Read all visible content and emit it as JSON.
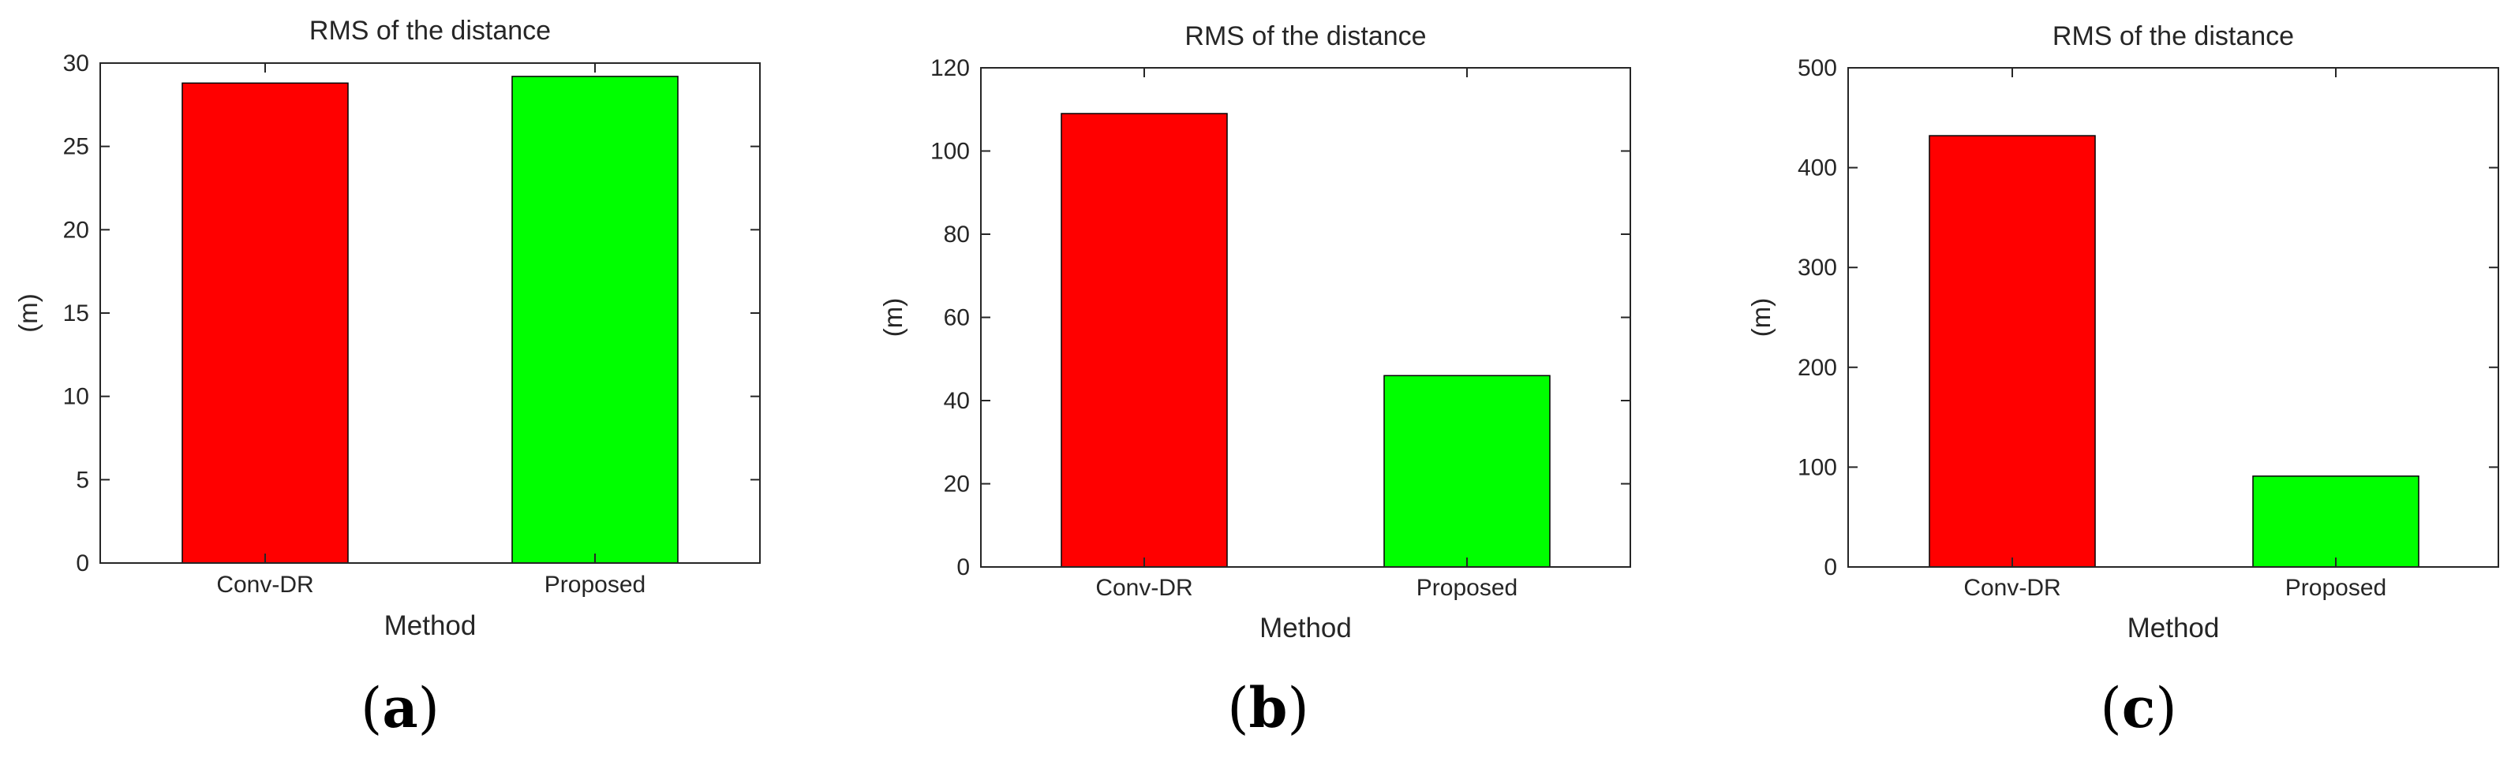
{
  "figure": {
    "panel_labels": [
      "a",
      "b",
      "c"
    ]
  },
  "colors": {
    "conv_dr": "#ff0000",
    "proposed": "#00ff00",
    "axis": "#262626"
  },
  "chart_data": [
    {
      "type": "bar",
      "title": "RMS of the distance",
      "xlabel": "Method",
      "ylabel": "(m)",
      "categories": [
        "Conv-DR",
        "Proposed"
      ],
      "values": [
        28.8,
        29.2
      ],
      "ylim": [
        0,
        30
      ],
      "yticks": [
        0,
        5,
        10,
        15,
        20,
        25,
        30
      ],
      "grid": false,
      "legend": "none"
    },
    {
      "type": "bar",
      "title": "RMS of the distance",
      "xlabel": "Method",
      "ylabel": "(m)",
      "categories": [
        "Conv-DR",
        "Proposed"
      ],
      "values": [
        109,
        46
      ],
      "ylim": [
        0,
        120
      ],
      "yticks": [
        0,
        20,
        40,
        60,
        80,
        100,
        120
      ],
      "grid": false,
      "legend": "none"
    },
    {
      "type": "bar",
      "title": "RMS of the distance",
      "xlabel": "Method",
      "ylabel": "(m)",
      "categories": [
        "Conv-DR",
        "Proposed"
      ],
      "values": [
        432,
        91
      ],
      "ylim": [
        0,
        500
      ],
      "yticks": [
        0,
        100,
        200,
        300,
        400,
        500
      ],
      "grid": false,
      "legend": "none"
    }
  ]
}
